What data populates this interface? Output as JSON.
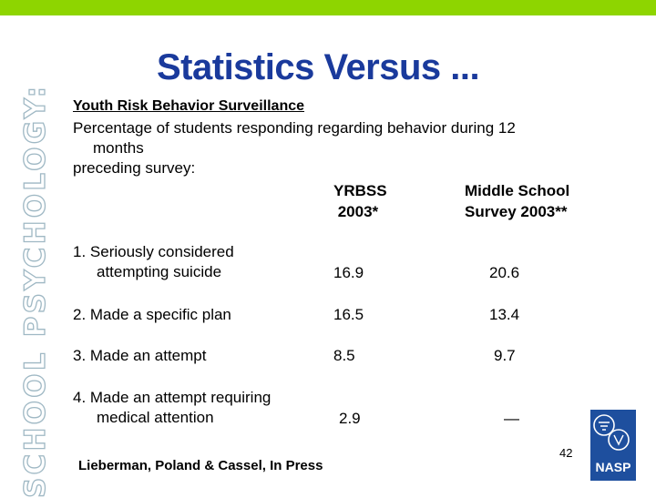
{
  "slide": {
    "side_banner": "SCHOOL PSYCHOLOGY:",
    "title": "Statistics Versus ...",
    "survey_name": "Youth Risk Behavior Surveillance",
    "intro_line1": "Percentage of students responding regarding behavior during 12",
    "intro_line2": "months",
    "intro_line3": "preceding survey:",
    "columns": [
      {
        "line1": "YRBSS",
        "line2": " 2003*"
      },
      {
        "line1": "Middle School",
        "line2": "Survey 2003**"
      }
    ],
    "rows": [
      {
        "label_line1": "1.  Seriously considered",
        "label_line2": "attempting suicide",
        "yrbss": "16.9",
        "middle": "20.6"
      },
      {
        "label_line1": "2.  Made a specific plan",
        "label_line2": "",
        "yrbss": "16.5",
        "middle": "13.4"
      },
      {
        "label_line1": "3.  Made an attempt",
        "label_line2": "",
        "yrbss": "8.5",
        "middle": "9.7"
      },
      {
        "label_line1": "4.  Made an attempt requiring",
        "label_line2": "medical attention",
        "yrbss": "2.9",
        "middle": "—"
      }
    ],
    "citation": "Lieberman, Poland & Cassel, In Press",
    "page_number": "42",
    "logo_text": "NASP"
  },
  "colors": {
    "top_bar": "#8ed500",
    "title": "#1a3a9c",
    "logo": "#1e4f9e",
    "side_text_outline": "#9fb8c4"
  }
}
